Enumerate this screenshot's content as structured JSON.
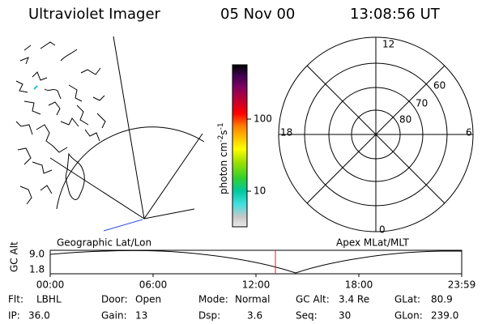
{
  "header": {
    "title": "Ultraviolet Imager",
    "date": "05 Nov 00",
    "time": "13:08:56 UT"
  },
  "map": {
    "caption": "Geographic Lat/Lon"
  },
  "colorbar": {
    "unit": [
      "photon cm",
      "-2",
      "s",
      "-1"
    ],
    "ticks": [
      "100",
      "10"
    ]
  },
  "polar": {
    "caption": "Apex MLat/MLT",
    "mlt_labels": [
      "12",
      "18",
      "6",
      "0"
    ],
    "mlat_labels": [
      "60",
      "70",
      "80"
    ]
  },
  "altitude": {
    "label": "GC Alt",
    "y_labels": [
      "9.0",
      "1.8"
    ],
    "x_labels": [
      "00:00",
      "06:00",
      "12:00",
      "18:00",
      "23:59"
    ]
  },
  "status": [
    {
      "key": "Flt:",
      "value": "LBHL"
    },
    {
      "key": "Door:",
      "value": "Open"
    },
    {
      "key": "Mode:",
      "value": "Normal"
    },
    {
      "key": "GC Alt:",
      "value": "3.4 Re"
    },
    {
      "key": "GLat:",
      "value": "80.9"
    },
    {
      "key": "IP:",
      "value": "36.0"
    },
    {
      "key": "Gain:",
      "value": "13"
    },
    {
      "key": "Dsp:",
      "value": "3.6"
    },
    {
      "key": "Seq:",
      "value": "30"
    },
    {
      "key": "GLon:",
      "value": "239.0"
    }
  ]
}
